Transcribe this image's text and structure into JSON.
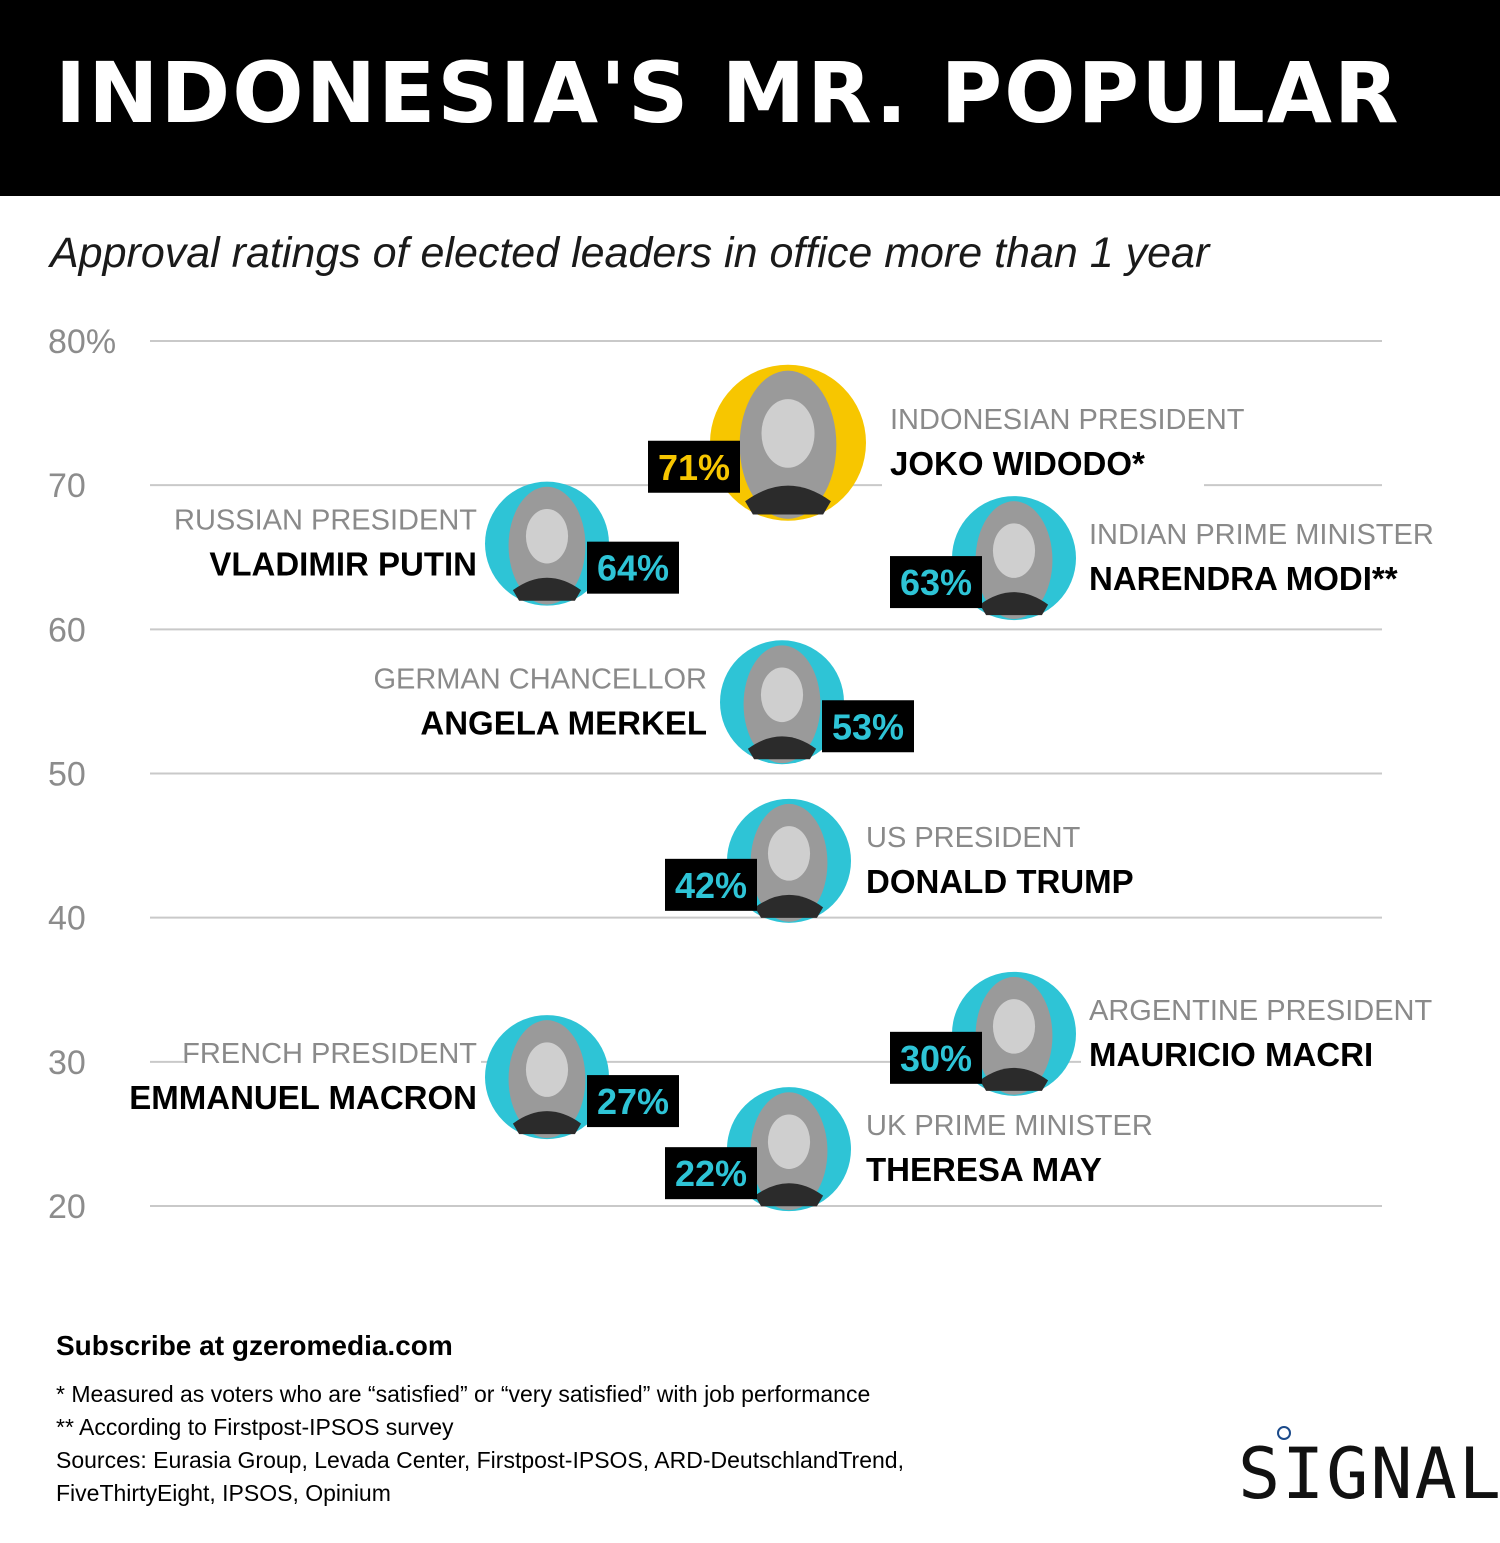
{
  "header": {
    "title": "INDONESIA'S MR. POPULAR"
  },
  "subtitle": "Approval ratings of elected leaders in office more than 1 year",
  "colors": {
    "header_bg": "#000000",
    "accent_teal": "#2ec4d6",
    "accent_yellow": "#f7c600",
    "badge_bg": "#000000"
  },
  "chart_data": {
    "type": "scatter",
    "ylim": [
      20,
      80
    ],
    "y_ticks": [
      {
        "value": 80,
        "label": "80%"
      },
      {
        "value": 70,
        "label": "70"
      },
      {
        "value": 60,
        "label": "60"
      },
      {
        "value": 50,
        "label": "50"
      },
      {
        "value": 40,
        "label": "40"
      },
      {
        "value": 30,
        "label": "30"
      },
      {
        "value": 20,
        "label": "20"
      }
    ],
    "grid": true,
    "points": [
      {
        "role": "INDONESIAN PRESIDENT",
        "name": "JOKO WIDODO*",
        "value": 71,
        "label": "71%",
        "highlight": true
      },
      {
        "role": "RUSSIAN PRESIDENT",
        "name": "VLADIMIR PUTIN",
        "value": 64,
        "label": "64%"
      },
      {
        "role": "INDIAN PRIME MINISTER",
        "name": "NARENDRA MODI**",
        "value": 63,
        "label": "63%"
      },
      {
        "role": "GERMAN CHANCELLOR",
        "name": "ANGELA MERKEL",
        "value": 53,
        "label": "53%"
      },
      {
        "role": "US PRESIDENT",
        "name": "DONALD TRUMP",
        "value": 42,
        "label": "42%"
      },
      {
        "role": "ARGENTINE PRESIDENT",
        "name": "MAURICIO MACRI",
        "value": 30,
        "label": "30%"
      },
      {
        "role": "FRENCH PRESIDENT",
        "name": "EMMANUEL MACRON",
        "value": 27,
        "label": "27%"
      },
      {
        "role": "UK PRIME MINISTER",
        "name": "THERESA MAY",
        "value": 22,
        "label": "22%"
      }
    ]
  },
  "footer": {
    "subscribe": "Subscribe at gzeromedia.com",
    "notes": [
      "* Measured as voters who are “satisfied” or “very satisfied” with job performance",
      "** According to Firstpost-IPSOS survey",
      "Sources: Eurasia Group, Levada Center, Firstpost-IPSOS, ARD-DeutschlandTrend,",
      "FiveThirtyEight, IPSOS, Opinium"
    ],
    "logo": "SIGNAL"
  }
}
